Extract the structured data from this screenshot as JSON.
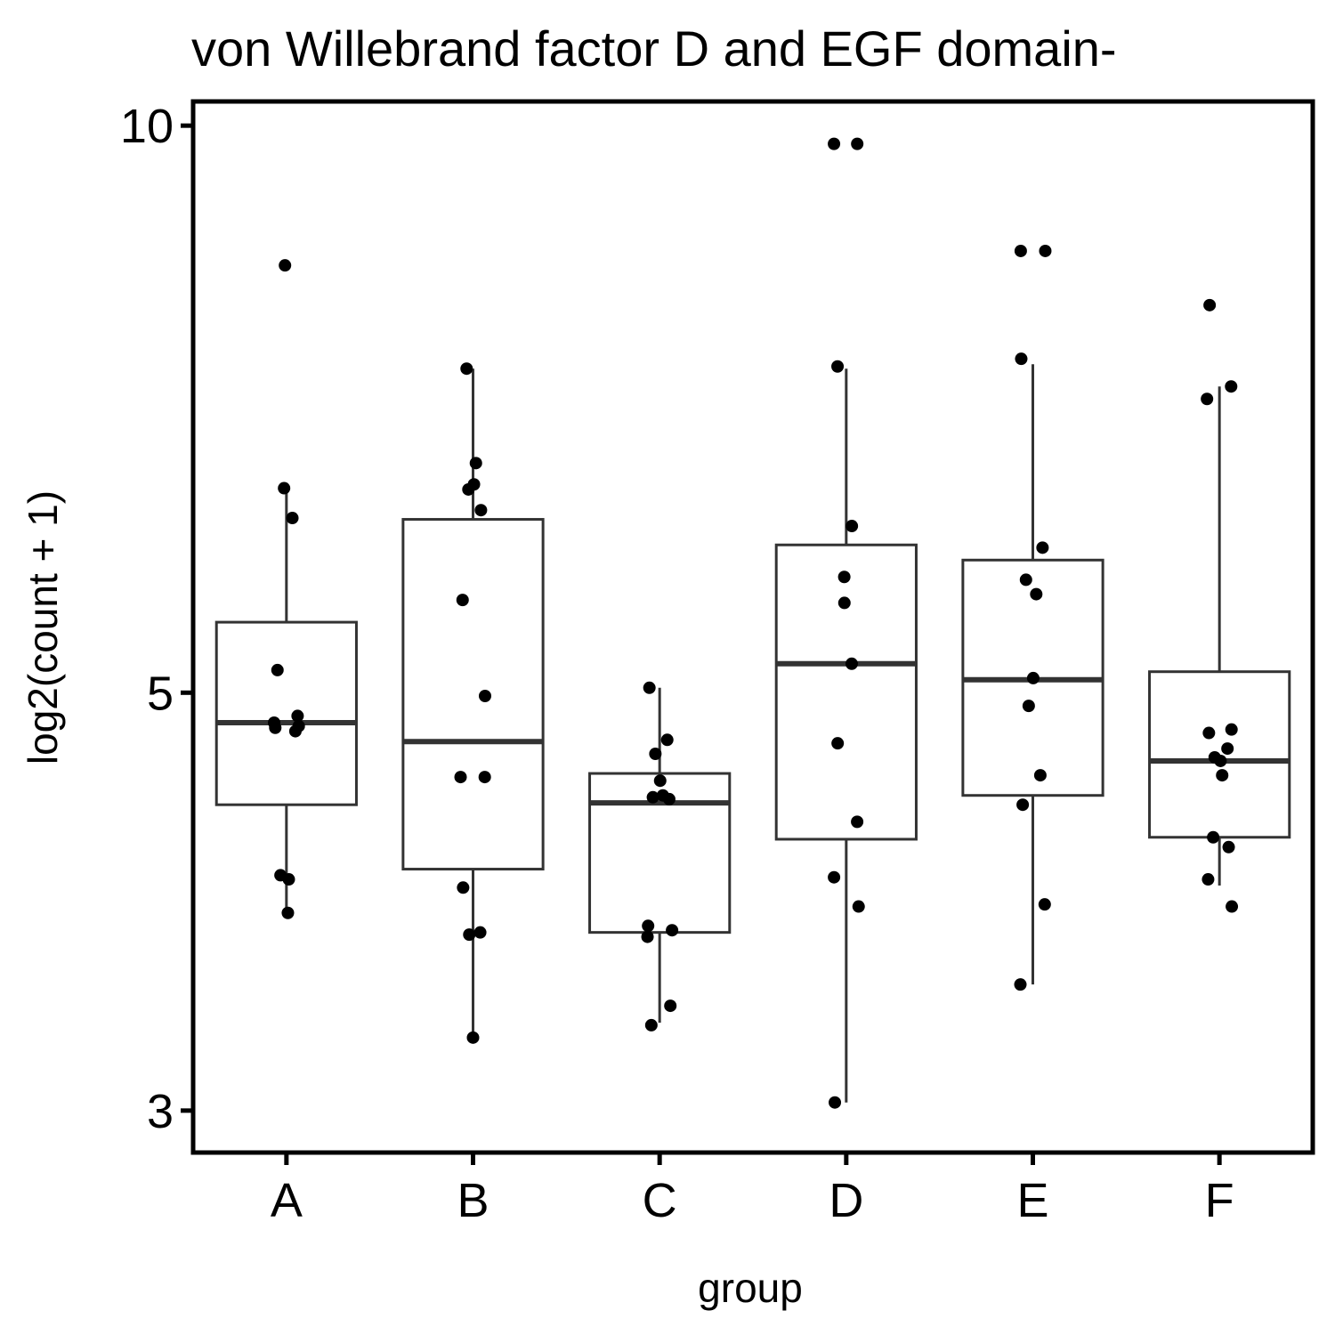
{
  "chart_data": {
    "type": "box",
    "title": "von Willebrand factor D and EGF domain-",
    "xlabel": "group",
    "ylabel": "log2(count + 1)",
    "y_scale": "log",
    "ylim": [
      2.85,
      10.3
    ],
    "yticks": [
      3,
      5,
      10
    ],
    "ytick_labels": [
      "3",
      "5",
      "10"
    ],
    "grid": false,
    "categories": [
      "A",
      "B",
      "C",
      "D",
      "E",
      "F"
    ],
    "boxes": [
      {
        "group": "A",
        "whisker_low": 3.82,
        "q1": 4.36,
        "median": 4.82,
        "q3": 5.45,
        "whisker_high": 6.42
      },
      {
        "group": "B",
        "whisker_low": 3.28,
        "q1": 4.03,
        "median": 4.71,
        "q3": 6.18,
        "whisker_high": 7.43
      },
      {
        "group": "C",
        "whisker_low": 3.34,
        "q1": 3.73,
        "median": 4.37,
        "q3": 4.53,
        "whisker_high": 5.03
      },
      {
        "group": "D",
        "whisker_low": 3.03,
        "q1": 4.18,
        "median": 5.18,
        "q3": 5.99,
        "whisker_high": 7.43
      },
      {
        "group": "E",
        "whisker_low": 3.5,
        "q1": 4.41,
        "median": 5.08,
        "q3": 5.88,
        "whisker_high": 7.47
      },
      {
        "group": "F",
        "whisker_low": 3.95,
        "q1": 4.19,
        "median": 4.6,
        "q3": 5.13,
        "whisker_high": 7.27
      }
    ],
    "points": {
      "A": [
        8.43,
        6.42,
        6.19,
        5.14,
        4.86,
        4.82,
        4.8,
        4.79,
        4.77,
        4.0,
        3.98,
        3.82
      ],
      "B": [
        7.43,
        6.62,
        6.45,
        6.41,
        6.25,
        5.6,
        4.98,
        4.51,
        4.51,
        3.94,
        3.73,
        3.72,
        3.28
      ],
      "C": [
        5.03,
        4.72,
        4.64,
        4.49,
        4.41,
        4.4,
        4.39,
        3.76,
        3.74,
        3.71,
        3.41,
        3.33
      ],
      "D": [
        9.78,
        9.78,
        7.45,
        6.13,
        5.76,
        5.58,
        5.18,
        4.7,
        4.27,
        3.99,
        3.85,
        3.03
      ],
      "E": [
        8.58,
        8.58,
        7.52,
        5.97,
        5.74,
        5.64,
        5.09,
        4.92,
        4.52,
        4.36,
        3.86,
        3.5
      ],
      "F": [
        8.03,
        7.27,
        7.16,
        4.78,
        4.76,
        4.67,
        4.62,
        4.6,
        4.52,
        4.19,
        4.14,
        3.98,
        3.85
      ]
    }
  }
}
